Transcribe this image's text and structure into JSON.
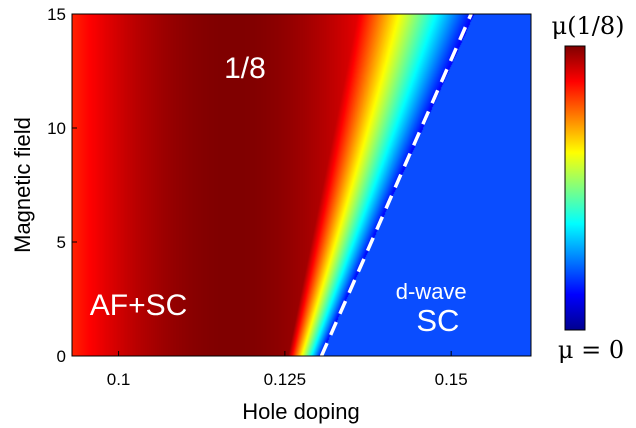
{
  "chart_data": {
    "type": "heatmap",
    "title": "",
    "xlabel": "Hole doping",
    "ylabel": "Magnetic field",
    "xlim": [
      0.093,
      0.162
    ],
    "ylim": [
      0,
      15
    ],
    "x_ticks": [
      {
        "value": 0.1,
        "label": "0.1"
      },
      {
        "value": 0.125,
        "label": "0.125"
      },
      {
        "value": 0.15,
        "label": "0.15"
      }
    ],
    "y_ticks": [
      {
        "value": 0,
        "label": "0"
      },
      {
        "value": 5,
        "label": "5"
      },
      {
        "value": 10,
        "label": "10"
      },
      {
        "value": 15,
        "label": "15"
      }
    ],
    "colorbar": {
      "colormap": "jet",
      "top_label": "μ(1/8)",
      "bottom_label": "μ = 0"
    },
    "region_labels": [
      {
        "text": "1/8",
        "x": 0.119,
        "y": 12.2
      },
      {
        "text": "AF+SC",
        "x": 0.103,
        "y": 1.8
      },
      {
        "text": "d-wave",
        "x": 0.147,
        "y": 2.5
      },
      {
        "text": "SC",
        "x": 0.148,
        "y": 1.1
      }
    ],
    "phase_boundary": {
      "style": "white-dashed",
      "points": [
        [
          0.1305,
          0
        ],
        [
          0.153,
          15
        ]
      ]
    },
    "field_model": {
      "peak_center_x": 0.117,
      "peak_halfwidth_x": 0.02,
      "transition_start": [
        [
          0.1255,
          0
        ],
        [
          0.136,
          15
        ]
      ],
      "transition_end": [
        [
          0.1305,
          0
        ],
        [
          0.1535,
          15
        ]
      ]
    },
    "colors": {
      "low": "#0a4dff",
      "high": "#800000",
      "boundary": "#ffffff"
    }
  }
}
